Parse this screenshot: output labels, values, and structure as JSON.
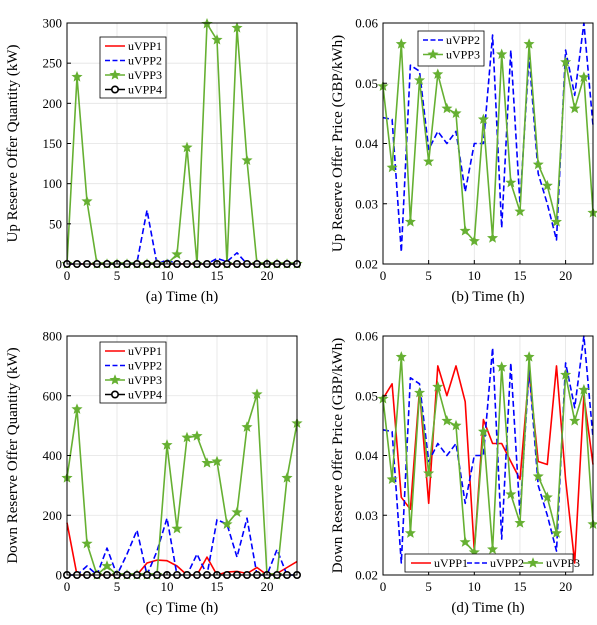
{
  "chart_data": [
    {
      "type": "line",
      "caption": "(a)  Time (h)",
      "ylabel": "Up Reserve Offer Quantity (kW)",
      "xlim": [
        0,
        23
      ],
      "ylim": [
        0,
        300
      ],
      "xticks": [
        0,
        5,
        10,
        15,
        20
      ],
      "yticks": [
        0,
        50,
        100,
        150,
        200,
        250,
        300
      ],
      "x": [
        0,
        1,
        2,
        3,
        4,
        5,
        6,
        7,
        8,
        9,
        10,
        11,
        12,
        13,
        14,
        15,
        16,
        17,
        18,
        19,
        20,
        21,
        22,
        23
      ],
      "legend_position": "top-center",
      "series": [
        {
          "name": "uVPP1",
          "color": "#ff0000",
          "style": "solid",
          "marker": "none",
          "values": [
            0,
            0,
            0,
            0,
            0,
            0,
            0,
            0,
            0,
            0,
            0,
            0,
            0,
            0,
            0,
            0,
            0,
            0,
            0,
            0,
            0,
            0,
            0,
            0
          ]
        },
        {
          "name": "uVPP2",
          "color": "#0000ff",
          "style": "dashed",
          "marker": "none",
          "values": [
            0,
            0,
            0,
            0,
            0,
            0,
            0,
            2,
            67,
            0,
            5,
            0,
            0,
            0,
            0,
            7,
            3,
            14,
            0,
            0,
            0,
            0,
            0,
            0
          ]
        },
        {
          "name": "uVPP3",
          "color": "#66b032",
          "style": "solid",
          "marker": "star",
          "values": [
            0,
            233,
            78,
            0,
            0,
            0,
            0,
            0,
            0,
            0,
            0,
            12,
            145,
            0,
            299,
            279,
            0,
            294,
            129,
            0,
            0,
            0,
            0,
            0
          ]
        },
        {
          "name": "uVPP4",
          "color": "#000000",
          "style": "solid",
          "marker": "circle",
          "values": [
            0,
            0,
            0,
            0,
            0,
            0,
            0,
            0,
            0,
            0,
            0,
            0,
            0,
            0,
            0,
            0,
            0,
            0,
            0,
            0,
            0,
            0,
            0,
            0
          ]
        }
      ]
    },
    {
      "type": "line",
      "caption": "(b)  Time (h)",
      "ylabel": "Up Reserve Offer Price (GBP/kWh)",
      "xlim": [
        0,
        23
      ],
      "ylim": [
        0.02,
        0.06
      ],
      "xticks": [
        0,
        5,
        10,
        15,
        20
      ],
      "yticks": [
        "0.02",
        "0.03",
        "0.04",
        "0.05",
        "0.06"
      ],
      "x": [
        0,
        1,
        2,
        3,
        4,
        5,
        6,
        7,
        8,
        9,
        10,
        11,
        12,
        13,
        14,
        15,
        16,
        17,
        18,
        19,
        20,
        21,
        22,
        23
      ],
      "legend_position": "top-center",
      "series": [
        {
          "name": "uVPP2",
          "color": "#0000ff",
          "style": "dashed",
          "marker": "none",
          "values": [
            0.0443,
            0.044,
            0.022,
            0.053,
            0.052,
            0.039,
            0.042,
            0.04,
            0.042,
            0.032,
            0.04,
            0.04,
            0.058,
            0.026,
            0.0555,
            0.03,
            0.0545,
            0.035,
            0.03,
            0.024,
            0.0555,
            0.048,
            0.06,
            0.043
          ]
        },
        {
          "name": "uVPP3",
          "color": "#66b032",
          "style": "solid",
          "marker": "star",
          "values": [
            0.0495,
            0.036,
            0.0565,
            0.027,
            0.0505,
            0.037,
            0.0515,
            0.0458,
            0.045,
            0.0255,
            0.0238,
            0.044,
            0.0243,
            0.0548,
            0.0335,
            0.0287,
            0.0565,
            0.0365,
            0.033,
            0.027,
            0.0535,
            0.0458,
            0.051,
            0.0285
          ]
        }
      ]
    },
    {
      "type": "line",
      "caption": "(c)  Time (h)",
      "ylabel": "Down Reserve Offer Quantity (kW)",
      "xlim": [
        0,
        23
      ],
      "ylim": [
        0,
        800
      ],
      "xticks": [
        0,
        5,
        10,
        15,
        20
      ],
      "yticks": [
        0,
        200,
        400,
        600,
        800
      ],
      "x": [
        0,
        1,
        2,
        3,
        4,
        5,
        6,
        7,
        8,
        9,
        10,
        11,
        12,
        13,
        14,
        15,
        16,
        17,
        18,
        19,
        20,
        21,
        22,
        23
      ],
      "legend_position": "top-center",
      "series": [
        {
          "name": "uVPP1",
          "color": "#ff0000",
          "style": "solid",
          "marker": "none",
          "values": [
            175,
            0,
            0,
            0,
            0,
            0,
            0,
            0,
            40,
            50,
            48,
            30,
            0,
            0,
            60,
            0,
            10,
            12,
            5,
            25,
            0,
            5,
            25,
            45
          ]
        },
        {
          "name": "uVPP2",
          "color": "#0000ff",
          "style": "dashed",
          "marker": "none",
          "values": [
            0,
            0,
            30,
            0,
            90,
            0,
            70,
            150,
            0,
            80,
            190,
            0,
            0,
            70,
            0,
            185,
            170,
            60,
            190,
            0,
            0,
            85,
            0,
            0
          ]
        },
        {
          "name": "uVPP3",
          "color": "#66b032",
          "style": "solid",
          "marker": "star",
          "values": [
            325,
            555,
            105,
            0,
            30,
            0,
            0,
            0,
            0,
            0,
            435,
            155,
            460,
            465,
            375,
            380,
            170,
            210,
            495,
            605,
            0,
            0,
            325,
            508
          ]
        },
        {
          "name": "uVPP4",
          "color": "#000000",
          "style": "solid",
          "marker": "circle",
          "values": [
            0,
            0,
            0,
            0,
            0,
            0,
            0,
            0,
            0,
            0,
            0,
            0,
            0,
            0,
            0,
            0,
            0,
            0,
            0,
            0,
            0,
            0,
            0,
            0
          ]
        }
      ]
    },
    {
      "type": "line",
      "caption": "(d)  Time (h)",
      "ylabel": "Down Reserve Offer Price (GBP/kWh)",
      "xlim": [
        0,
        23
      ],
      "ylim": [
        0.02,
        0.06
      ],
      "xticks": [
        0,
        5,
        10,
        15,
        20
      ],
      "yticks": [
        "0.02",
        "0.03",
        "0.04",
        "0.05",
        "0.06"
      ],
      "x": [
        0,
        1,
        2,
        3,
        4,
        5,
        6,
        7,
        8,
        9,
        10,
        11,
        12,
        13,
        14,
        15,
        16,
        17,
        18,
        19,
        20,
        21,
        22,
        23
      ],
      "legend_position": "bottom",
      "series": [
        {
          "name": "uVPP1",
          "color": "#ff0000",
          "style": "solid",
          "marker": "none",
          "values": [
            0.0495,
            0.052,
            0.033,
            0.031,
            0.051,
            0.032,
            0.055,
            0.05,
            0.055,
            0.049,
            0.024,
            0.046,
            0.042,
            0.042,
            0.039,
            0.036,
            0.054,
            0.039,
            0.0385,
            0.055,
            0.036,
            0.022,
            0.05,
            0.0385
          ]
        },
        {
          "name": "uVPP2",
          "color": "#0000ff",
          "style": "dashed",
          "marker": "none",
          "values": [
            0.0443,
            0.044,
            0.022,
            0.053,
            0.052,
            0.039,
            0.042,
            0.04,
            0.042,
            0.032,
            0.04,
            0.04,
            0.058,
            0.026,
            0.0555,
            0.03,
            0.0545,
            0.035,
            0.03,
            0.024,
            0.0555,
            0.048,
            0.06,
            0.043
          ]
        },
        {
          "name": "uVPP3",
          "color": "#66b032",
          "style": "solid",
          "marker": "star",
          "values": [
            0.0495,
            0.036,
            0.0565,
            0.027,
            0.0505,
            0.037,
            0.0515,
            0.0458,
            0.045,
            0.0255,
            0.0238,
            0.044,
            0.0243,
            0.0548,
            0.0335,
            0.0287,
            0.0565,
            0.0365,
            0.033,
            0.027,
            0.0535,
            0.0458,
            0.051,
            0.0285
          ]
        }
      ]
    }
  ]
}
